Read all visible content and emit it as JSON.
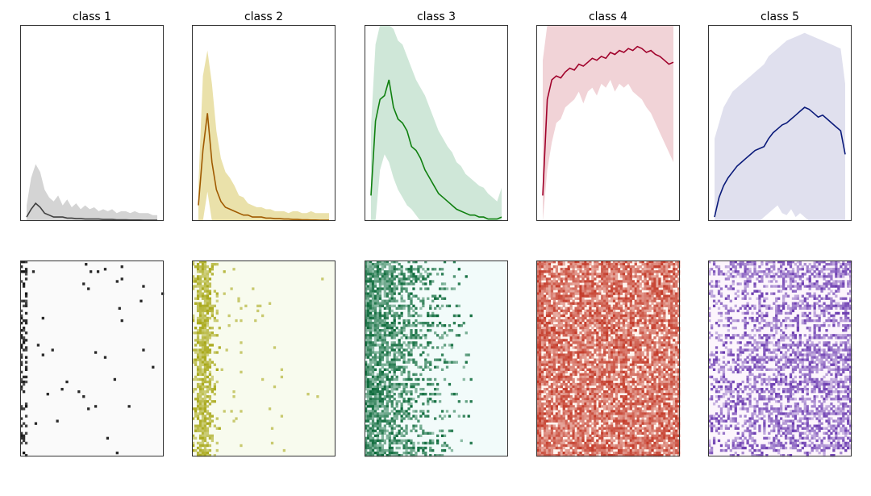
{
  "chart_data": {
    "type": "line",
    "grid": false,
    "axes_visible": false,
    "rows": [
      "mean-profile",
      "heatmap"
    ],
    "panels": [
      {
        "title": "class 1",
        "line_color": "#404040",
        "band_color": "#b0b0b0",
        "heatmap_colors": [
          "#fafafa",
          "#111111"
        ],
        "heatmap_style": "sparse",
        "ylim": [
          0,
          1
        ],
        "mean": [
          0.02,
          0.06,
          0.09,
          0.07,
          0.04,
          0.03,
          0.02,
          0.02,
          0.02,
          0.015,
          0.015,
          0.012,
          0.012,
          0.01,
          0.01,
          0.01,
          0.01,
          0.008,
          0.008,
          0.008,
          0.006,
          0.006,
          0.006,
          0.005,
          0.005,
          0.005,
          0.004,
          0.004,
          0.004,
          0.004
        ],
        "upper": [
          0.08,
          0.22,
          0.29,
          0.25,
          0.16,
          0.12,
          0.1,
          0.13,
          0.08,
          0.11,
          0.07,
          0.09,
          0.06,
          0.08,
          0.06,
          0.07,
          0.05,
          0.06,
          0.05,
          0.06,
          0.04,
          0.05,
          0.05,
          0.04,
          0.05,
          0.04,
          0.04,
          0.04,
          0.03,
          0.03
        ],
        "lower": [
          0,
          0,
          0,
          0,
          0,
          0,
          0,
          0,
          0,
          0,
          0,
          0,
          0,
          0,
          0,
          0,
          0,
          0,
          0,
          0,
          0,
          0,
          0,
          0,
          0,
          0,
          0,
          0,
          0,
          0
        ]
      },
      {
        "title": "class 2",
        "line_color": "#a05a00",
        "band_color": "#d8c864",
        "heatmap_colors": [
          "#f8fbee",
          "#a8a818"
        ],
        "heatmap_style": "peak",
        "ylim": [
          0,
          1
        ],
        "mean": [
          0.08,
          0.36,
          0.55,
          0.3,
          0.16,
          0.1,
          0.07,
          0.06,
          0.05,
          0.04,
          0.03,
          0.03,
          0.02,
          0.02,
          0.02,
          0.015,
          0.015,
          0.012,
          0.012,
          0.01,
          0.01,
          0.008,
          0.008,
          0.006,
          0.006,
          0.005,
          0.005,
          0.004,
          0.004,
          0.004
        ],
        "upper": [
          0.18,
          0.74,
          0.87,
          0.7,
          0.46,
          0.32,
          0.25,
          0.22,
          0.18,
          0.13,
          0.12,
          0.09,
          0.08,
          0.07,
          0.07,
          0.06,
          0.06,
          0.05,
          0.05,
          0.05,
          0.04,
          0.05,
          0.05,
          0.04,
          0.04,
          0.05,
          0.04,
          0.04,
          0.04,
          0.04
        ],
        "lower": [
          0,
          0,
          0.15,
          0,
          0,
          0,
          0,
          0,
          0,
          0,
          0,
          0,
          0,
          0,
          0,
          0,
          0,
          0,
          0,
          0,
          0,
          0,
          0,
          0,
          0,
          0,
          0,
          0,
          0,
          0
        ]
      },
      {
        "title": "class 3",
        "line_color": "#0f800f",
        "band_color": "#a8d4b8",
        "heatmap_colors": [
          "#f2fbfa",
          "#0c6a3a"
        ],
        "heatmap_style": "decay",
        "ylim": [
          0,
          1
        ],
        "mean": [
          0.13,
          0.51,
          0.62,
          0.64,
          0.72,
          0.58,
          0.52,
          0.5,
          0.46,
          0.38,
          0.36,
          0.32,
          0.26,
          0.22,
          0.18,
          0.14,
          0.12,
          0.1,
          0.08,
          0.06,
          0.05,
          0.04,
          0.03,
          0.03,
          0.02,
          0.02,
          0.01,
          0.01,
          0.01,
          0.02
        ],
        "upper": [
          0.48,
          0.9,
          1.0,
          1.0,
          1.0,
          0.98,
          0.92,
          0.9,
          0.84,
          0.78,
          0.72,
          0.68,
          0.64,
          0.58,
          0.52,
          0.46,
          0.42,
          0.38,
          0.35,
          0.3,
          0.28,
          0.24,
          0.22,
          0.2,
          0.18,
          0.17,
          0.14,
          0.12,
          0.1,
          0.17
        ],
        "lower": [
          0,
          0,
          0.26,
          0.34,
          0.3,
          0.22,
          0.16,
          0.12,
          0.08,
          0.06,
          0.03,
          0,
          0,
          0,
          0,
          0,
          0,
          0,
          0,
          0,
          0,
          0,
          0,
          0,
          0,
          0,
          0,
          0,
          0,
          0
        ]
      },
      {
        "title": "class 4",
        "line_color": "#a0002a",
        "band_color": "#e6aeb6",
        "heatmap_colors": [
          "#fff4ee",
          "#c0301e"
        ],
        "heatmap_style": "dense",
        "ylim": [
          0,
          1
        ],
        "mean": [
          0.13,
          0.62,
          0.72,
          0.74,
          0.73,
          0.76,
          0.78,
          0.77,
          0.8,
          0.79,
          0.81,
          0.83,
          0.82,
          0.84,
          0.83,
          0.86,
          0.85,
          0.87,
          0.86,
          0.88,
          0.87,
          0.89,
          0.88,
          0.86,
          0.87,
          0.85,
          0.84,
          0.82,
          0.8,
          0.81
        ],
        "upper": [
          0.82,
          1.0,
          1.0,
          1.0,
          1.0,
          1.0,
          1.0,
          1.0,
          1.0,
          1.0,
          1.0,
          1.0,
          1.0,
          1.0,
          1.0,
          1.0,
          1.0,
          1.0,
          1.0,
          1.0,
          1.0,
          1.0,
          1.0,
          1.0,
          1.0,
          1.0,
          1.0,
          1.0,
          1.0,
          1.0
        ],
        "lower": [
          0,
          0.26,
          0.4,
          0.5,
          0.52,
          0.58,
          0.6,
          0.62,
          0.66,
          0.6,
          0.66,
          0.68,
          0.64,
          0.7,
          0.68,
          0.72,
          0.66,
          0.7,
          0.68,
          0.7,
          0.66,
          0.64,
          0.62,
          0.58,
          0.55,
          0.5,
          0.45,
          0.4,
          0.35,
          0.3
        ]
      },
      {
        "title": "class 5",
        "line_color": "#0a1a7a",
        "band_color": "#c6c6e0",
        "heatmap_colors": [
          "#fcf5fc",
          "#6a3ab0"
        ],
        "heatmap_style": "medium",
        "ylim": [
          0,
          1
        ],
        "mean": [
          0.02,
          0.12,
          0.18,
          0.22,
          0.25,
          0.28,
          0.3,
          0.32,
          0.34,
          0.36,
          0.37,
          0.38,
          0.42,
          0.45,
          0.47,
          0.49,
          0.5,
          0.52,
          0.54,
          0.56,
          0.58,
          0.57,
          0.55,
          0.53,
          0.54,
          0.52,
          0.5,
          0.48,
          0.46,
          0.34
        ],
        "upper": [
          0.42,
          0.5,
          0.58,
          0.62,
          0.66,
          0.68,
          0.7,
          0.72,
          0.74,
          0.76,
          0.78,
          0.8,
          0.84,
          0.86,
          0.88,
          0.9,
          0.92,
          0.93,
          0.94,
          0.95,
          0.96,
          0.95,
          0.94,
          0.93,
          0.92,
          0.91,
          0.9,
          0.89,
          0.88,
          0.7
        ],
        "lower": [
          0,
          0,
          0,
          0,
          0,
          0,
          0,
          0,
          0,
          0,
          0,
          0.02,
          0.04,
          0.06,
          0.08,
          0.04,
          0.03,
          0.06,
          0.02,
          0.04,
          0.02,
          0,
          0,
          0,
          0,
          0,
          0,
          0,
          0,
          0
        ]
      }
    ]
  }
}
